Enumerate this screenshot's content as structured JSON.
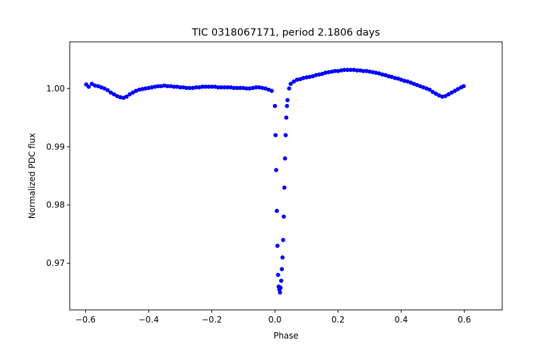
{
  "chart_data": {
    "type": "scatter",
    "title": "TIC 0318067171, period 2.1806 days",
    "xlabel": "Phase",
    "ylabel": "Normalized PDC flux",
    "xlim": [
      -0.65,
      0.72
    ],
    "ylim": [
      0.962,
      1.008
    ],
    "xticks": [
      -0.6,
      -0.4,
      -0.2,
      0.0,
      0.2,
      0.4,
      0.6
    ],
    "xtick_labels": [
      "−0.6",
      "−0.4",
      "−0.2",
      "0.0",
      "0.2",
      "0.4",
      "0.6"
    ],
    "yticks": [
      0.97,
      0.98,
      0.99,
      1.0
    ],
    "ytick_labels": [
      "0.97",
      "0.98",
      "0.99",
      "1.00"
    ],
    "grid": false,
    "legend": "none",
    "point_color": "#0000ff",
    "series": [
      {
        "x": [
          -0.598,
          -0.59,
          -0.58,
          -0.57,
          -0.56,
          -0.55,
          -0.54,
          -0.53,
          -0.52,
          -0.51,
          -0.5,
          -0.49,
          -0.48,
          -0.47,
          -0.46,
          -0.45,
          -0.44,
          -0.43,
          -0.42,
          -0.41,
          -0.4,
          -0.39,
          -0.38,
          -0.37,
          -0.36,
          -0.35,
          -0.34,
          -0.33,
          -0.32,
          -0.31,
          -0.3,
          -0.29,
          -0.28,
          -0.27,
          -0.26,
          -0.25,
          -0.24,
          -0.23,
          -0.22,
          -0.21,
          -0.2,
          -0.19,
          -0.18,
          -0.17,
          -0.16,
          -0.15,
          -0.14,
          -0.13,
          -0.12,
          -0.11,
          -0.1,
          -0.09,
          -0.08,
          -0.07,
          -0.06,
          -0.05,
          -0.04,
          -0.03,
          -0.02,
          -0.01,
          0.0,
          0.002,
          0.004,
          0.006,
          0.008,
          0.01,
          0.012,
          0.014,
          0.016,
          0.018,
          0.02,
          0.022,
          0.024,
          0.026,
          0.028,
          0.03,
          0.032,
          0.034,
          0.036,
          0.038,
          0.04,
          0.045,
          0.05,
          0.06,
          0.07,
          0.08,
          0.09,
          0.1,
          0.11,
          0.12,
          0.13,
          0.14,
          0.15,
          0.16,
          0.17,
          0.18,
          0.19,
          0.2,
          0.21,
          0.22,
          0.23,
          0.24,
          0.25,
          0.26,
          0.27,
          0.28,
          0.29,
          0.3,
          0.31,
          0.32,
          0.33,
          0.34,
          0.35,
          0.36,
          0.37,
          0.38,
          0.39,
          0.4,
          0.41,
          0.42,
          0.43,
          0.44,
          0.45,
          0.46,
          0.47,
          0.48,
          0.49,
          0.5,
          0.51,
          0.52,
          0.53,
          0.54,
          0.55,
          0.56,
          0.57,
          0.58,
          0.59,
          0.598
        ],
        "y": [
          1.0007,
          1.0003,
          1.0008,
          1.0005,
          1.0004,
          1.0002,
          1.0,
          0.9997,
          0.9993,
          0.999,
          0.9987,
          0.9985,
          0.9984,
          0.9986,
          0.999,
          0.9993,
          0.9996,
          0.9998,
          0.9999,
          1.0,
          1.0001,
          1.0002,
          1.0003,
          1.0004,
          1.0004,
          1.0005,
          1.0004,
          1.0004,
          1.0003,
          1.0003,
          1.0002,
          1.0002,
          1.0001,
          1.0001,
          1.0001,
          1.0002,
          1.0002,
          1.0003,
          1.0003,
          1.0003,
          1.0003,
          1.0003,
          1.0002,
          1.0002,
          1.0002,
          1.0002,
          1.0002,
          1.0001,
          1.0001,
          1.0001,
          1.0001,
          1.0,
          1.0,
          1.0001,
          1.0002,
          1.0002,
          1.0001,
          1.0,
          0.9998,
          0.9996,
          0.997,
          0.992,
          0.986,
          0.979,
          0.973,
          0.968,
          0.966,
          0.9655,
          0.965,
          0.9658,
          0.967,
          0.969,
          0.971,
          0.974,
          0.978,
          0.983,
          0.988,
          0.992,
          0.995,
          0.997,
          0.998,
          1.0,
          1.0008,
          1.0012,
          1.0015,
          1.0016,
          1.0018,
          1.0019,
          1.002,
          1.0021,
          1.0023,
          1.0024,
          1.0025,
          1.0027,
          1.0028,
          1.0029,
          1.003,
          1.003,
          1.0031,
          1.0032,
          1.0032,
          1.0032,
          1.0032,
          1.0031,
          1.0031,
          1.003,
          1.003,
          1.0029,
          1.0028,
          1.0027,
          1.0026,
          1.0024,
          1.0023,
          1.0021,
          1.002,
          1.0018,
          1.0017,
          1.0015,
          1.0013,
          1.0012,
          1.001,
          1.0008,
          1.0006,
          1.0004,
          1.0002,
          1.0,
          0.9998,
          0.9994,
          0.9991,
          0.9988,
          0.9986,
          0.9987,
          0.999,
          0.9993,
          0.9996,
          0.9999,
          1.0002,
          1.0004
        ]
      }
    ]
  }
}
